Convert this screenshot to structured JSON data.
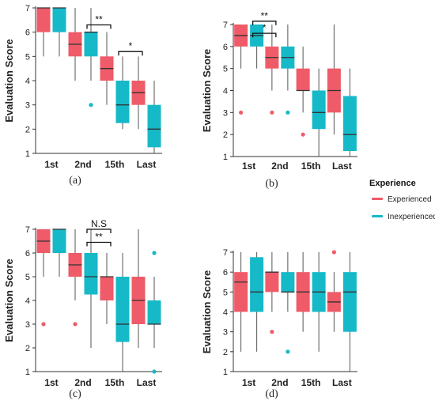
{
  "legend": {
    "title": "Experience",
    "items": [
      {
        "label": "Experienced",
        "color": "#ef5b68"
      },
      {
        "label": "Inexperienced",
        "color": "#16b9c8"
      }
    ]
  },
  "chart_data": [
    {
      "type": "boxplot",
      "caption": "(a)",
      "ylabel": "Evaluation Score",
      "ylim": [
        1,
        7
      ],
      "yticks": [
        1,
        2,
        3,
        4,
        5,
        6,
        7
      ],
      "categories": [
        "1st",
        "2nd",
        "15th",
        "Last"
      ],
      "series": [
        {
          "name": "Experienced",
          "color": "#ef5b68",
          "boxes": [
            {
              "min": 5,
              "q1": 6,
              "median": 7,
              "q3": 7,
              "max": 7,
              "outliers": []
            },
            {
              "min": 4,
              "q1": 5,
              "median": 5.5,
              "q3": 6,
              "max": 7,
              "outliers": []
            },
            {
              "min": 3,
              "q1": 4,
              "median": 4.5,
              "q3": 5,
              "max": 6,
              "outliers": []
            },
            {
              "min": 2,
              "q1": 3,
              "median": 3.5,
              "q3": 4,
              "max": 5,
              "outliers": []
            }
          ]
        },
        {
          "name": "Inexperienced",
          "color": "#16b9c8",
          "boxes": [
            {
              "min": 5,
              "q1": 6,
              "median": 7,
              "q3": 7,
              "max": 7,
              "outliers": []
            },
            {
              "min": 4,
              "q1": 5,
              "median": 6,
              "q3": 6,
              "max": 7,
              "outliers": [
                3
              ]
            },
            {
              "min": 2,
              "q1": 2.25,
              "median": 3,
              "q3": 4,
              "max": 5,
              "outliers": []
            },
            {
              "min": 1,
              "q1": 1.25,
              "median": 2,
              "q3": 3,
              "max": 4,
              "outliers": []
            }
          ]
        }
      ],
      "annotations": [
        {
          "from": 1,
          "to": 2,
          "label": "**",
          "level": 6.3
        },
        {
          "from": 2,
          "to": 3,
          "label": "*",
          "level": 5.2
        }
      ]
    },
    {
      "type": "boxplot",
      "caption": "(b)",
      "ylabel": "Evaluation Score",
      "ylim": [
        1,
        7
      ],
      "yticks": [
        1,
        2,
        3,
        4,
        5,
        6,
        7
      ],
      "categories": [
        "1st",
        "2nd",
        "15th",
        "Last"
      ],
      "series": [
        {
          "name": "Experienced",
          "color": "#ef5b68",
          "boxes": [
            {
              "min": 5,
              "q1": 6,
              "median": 6.5,
              "q3": 7,
              "max": 7,
              "outliers": [
                3
              ]
            },
            {
              "min": 4,
              "q1": 5,
              "median": 5.5,
              "q3": 6,
              "max": 7,
              "outliers": [
                3
              ]
            },
            {
              "min": 3,
              "q1": 4,
              "median": 4,
              "q3": 5,
              "max": 6,
              "outliers": [
                2
              ]
            },
            {
              "min": 2,
              "q1": 3,
              "median": 4,
              "q3": 5,
              "max": 7,
              "outliers": []
            }
          ]
        },
        {
          "name": "Inexperienced",
          "color": "#16b9c8",
          "boxes": [
            {
              "min": 5,
              "q1": 6,
              "median": 6.5,
              "q3": 7,
              "max": 7,
              "outliers": []
            },
            {
              "min": 4,
              "q1": 5,
              "median": 5.5,
              "q3": 6,
              "max": 7,
              "outliers": [
                3
              ]
            },
            {
              "min": 1,
              "q1": 2.25,
              "median": 3,
              "q3": 4,
              "max": 5,
              "outliers": []
            },
            {
              "min": 1,
              "q1": 1.25,
              "median": 2,
              "q3": 3.75,
              "max": 5,
              "outliers": []
            }
          ]
        }
      ],
      "annotations": [
        {
          "from": 0,
          "to": 1,
          "label": "**",
          "level": 7.15
        },
        {
          "from": 0,
          "to": 1,
          "label": "*",
          "level": 6.6
        }
      ]
    },
    {
      "type": "boxplot",
      "caption": "(c)",
      "ylabel": "Evaluation Score",
      "ylim": [
        1,
        7
      ],
      "yticks": [
        1,
        2,
        3,
        4,
        5,
        6,
        7
      ],
      "categories": [
        "1st",
        "2nd",
        "15th",
        "Last"
      ],
      "series": [
        {
          "name": "Experienced",
          "color": "#ef5b68",
          "boxes": [
            {
              "min": 5,
              "q1": 6,
              "median": 6.5,
              "q3": 7,
              "max": 7,
              "outliers": [
                3
              ]
            },
            {
              "min": 4,
              "q1": 5,
              "median": 5.5,
              "q3": 6,
              "max": 7,
              "outliers": [
                3
              ]
            },
            {
              "min": 3,
              "q1": 4,
              "median": 5,
              "q3": 5,
              "max": 6,
              "outliers": []
            },
            {
              "min": 2,
              "q1": 3,
              "median": 4,
              "q3": 5,
              "max": 7,
              "outliers": []
            }
          ]
        },
        {
          "name": "Inexperienced",
          "color": "#16b9c8",
          "boxes": [
            {
              "min": 5,
              "q1": 6,
              "median": 7,
              "q3": 7,
              "max": 7,
              "outliers": []
            },
            {
              "min": 2,
              "q1": 4.25,
              "median": 5,
              "q3": 6,
              "max": 7,
              "outliers": []
            },
            {
              "min": 1,
              "q1": 2.25,
              "median": 3,
              "q3": 5,
              "max": 6,
              "outliers": []
            },
            {
              "min": 2,
              "q1": 3,
              "median": 3,
              "q3": 4,
              "max": 5,
              "outliers": [
                6,
                1
              ]
            }
          ]
        }
      ],
      "annotations": [
        {
          "from": 1,
          "to": 2,
          "label": "N.S",
          "level": 7.0
        },
        {
          "from": 1,
          "to": 2,
          "label": "**",
          "level": 6.45
        }
      ]
    },
    {
      "type": "boxplot",
      "caption": "(d)",
      "ylabel": "Evaluation Score",
      "ylim": [
        1,
        7
      ],
      "yticks": [
        1,
        2,
        3,
        4,
        5,
        6,
        7
      ],
      "categories": [
        "1st",
        "2nd",
        "15th",
        "Last"
      ],
      "series": [
        {
          "name": "Experienced",
          "color": "#ef5b68",
          "boxes": [
            {
              "min": 2,
              "q1": 4,
              "median": 5.5,
              "q3": 6,
              "max": 7,
              "outliers": []
            },
            {
              "min": 4,
              "q1": 5,
              "median": 6,
              "q3": 6,
              "max": 7,
              "outliers": [
                3
              ]
            },
            {
              "min": 3,
              "q1": 4,
              "median": 5,
              "q3": 6,
              "max": 7,
              "outliers": []
            },
            {
              "min": 3,
              "q1": 4,
              "median": 4.5,
              "q3": 5,
              "max": 6,
              "outliers": [
                7
              ]
            }
          ]
        },
        {
          "name": "Inexperienced",
          "color": "#16b9c8",
          "boxes": [
            {
              "min": 2,
              "q1": 4,
              "median": 5,
              "q3": 6.75,
              "max": 7,
              "outliers": []
            },
            {
              "min": 4,
              "q1": 5,
              "median": 5,
              "q3": 6,
              "max": 7,
              "outliers": [
                2
              ]
            },
            {
              "min": 2,
              "q1": 4,
              "median": 5,
              "q3": 6,
              "max": 7,
              "outliers": []
            },
            {
              "min": 1,
              "q1": 3,
              "median": 5,
              "q3": 6,
              "max": 7,
              "outliers": []
            }
          ]
        }
      ],
      "annotations": []
    }
  ]
}
